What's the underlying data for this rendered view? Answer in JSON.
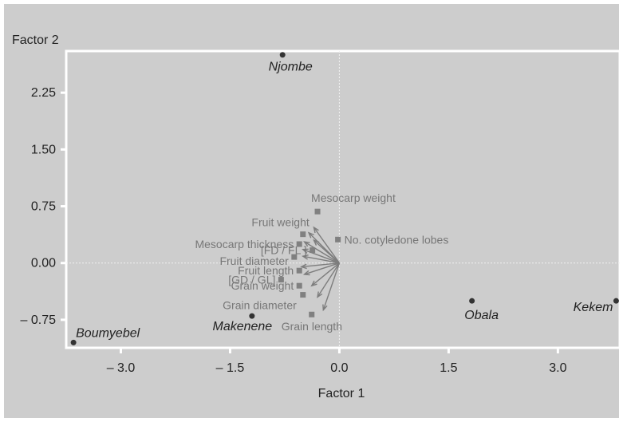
{
  "chart_data": {
    "type": "scatter",
    "title": "",
    "xlabel": "Factor 1",
    "ylabel": "Factor 2",
    "xlim": [
      -3.75,
      3.85
    ],
    "ylim": [
      -1.12,
      2.8
    ],
    "x_ticks": [
      {
        "value": -3.0,
        "label": "– 3.0"
      },
      {
        "value": -1.5,
        "label": "– 1.5"
      },
      {
        "value": 0.0,
        "label": "0.0"
      },
      {
        "value": 1.5,
        "label": "1.5"
      },
      {
        "value": 3.0,
        "label": "3.0"
      }
    ],
    "y_ticks": [
      {
        "value": 2.25,
        "label": "2.25"
      },
      {
        "value": 1.5,
        "label": "1.50"
      },
      {
        "value": 0.75,
        "label": "0.75"
      },
      {
        "value": 0.0,
        "label": "0.00"
      },
      {
        "value": -0.75,
        "label": "– 0.75"
      }
    ],
    "sites": [
      {
        "label": "Njombe",
        "x": -0.78,
        "y": 2.75
      },
      {
        "label": "Boumyebel",
        "x": -3.65,
        "y": -1.05
      },
      {
        "label": "Makenene",
        "x": -1.2,
        "y": -0.7
      },
      {
        "label": "Obala",
        "x": 1.82,
        "y": -0.5
      },
      {
        "label": "Kekem",
        "x": 3.8,
        "y": -0.5
      }
    ],
    "variables": [
      {
        "label": "Mesocarp weight",
        "x": -0.3,
        "y": 0.68
      },
      {
        "label": "No. cotyledone lobes",
        "x": -0.02,
        "y": 0.31
      },
      {
        "label": "Fruit weight",
        "x": -0.5,
        "y": 0.38
      },
      {
        "label": "Mesocarp thickness",
        "x": -0.55,
        "y": 0.25
      },
      {
        "label": "[FD / FL ]",
        "x": -0.37,
        "y": 0.17
      },
      {
        "label": "Fruit diameter",
        "x": -0.62,
        "y": 0.08
      },
      {
        "label": "Fruit length",
        "x": -0.55,
        "y": -0.1
      },
      {
        "label": "[GD / GL]",
        "x": -0.8,
        "y": -0.22
      },
      {
        "label": "Grain weight",
        "x": -0.55,
        "y": -0.3
      },
      {
        "label": "Grain diameter",
        "x": -0.5,
        "y": -0.42
      },
      {
        "label": "Grain length",
        "x": -0.38,
        "y": -0.68
      }
    ],
    "arrows": [
      {
        "x": -0.35,
        "y": 0.47
      },
      {
        "x": -0.42,
        "y": 0.4
      },
      {
        "x": -0.35,
        "y": 0.3
      },
      {
        "x": -0.48,
        "y": 0.28
      },
      {
        "x": -0.5,
        "y": 0.18
      },
      {
        "x": -0.5,
        "y": 0.09
      },
      {
        "x": -0.52,
        "y": -0.05
      },
      {
        "x": -0.48,
        "y": -0.15
      },
      {
        "x": -0.38,
        "y": -0.3
      },
      {
        "x": -0.3,
        "y": -0.45
      },
      {
        "x": -0.22,
        "y": -0.62
      }
    ],
    "grid": false,
    "legend": "none"
  }
}
